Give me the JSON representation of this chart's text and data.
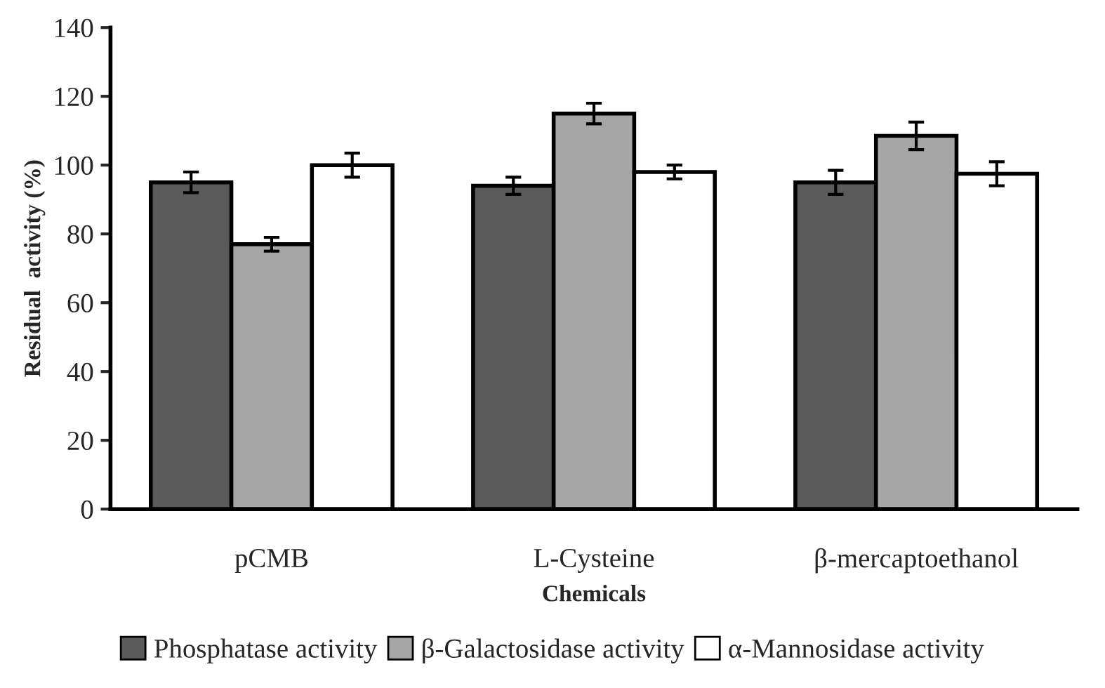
{
  "chart_data": {
    "type": "bar",
    "categories": [
      "pCMB",
      "L-Cysteine",
      "β-mercaptoethanol"
    ],
    "series": [
      {
        "name": "Phosphatase activity",
        "color": "#5a5a5a",
        "values": [
          95,
          94,
          95
        ],
        "errors": [
          3,
          2.5,
          3.5
        ]
      },
      {
        "name": "β-Galactosidase activity",
        "color": "#a6a6a6",
        "values": [
          77,
          115,
          108.5
        ],
        "errors": [
          2,
          3,
          4
        ]
      },
      {
        "name": "α-Mannosidase activity",
        "color": "#ffffff",
        "values": [
          100,
          98,
          97.5
        ],
        "errors": [
          3.5,
          2,
          3.5
        ]
      }
    ],
    "xlabel": "Chemicals",
    "ylabel": "Residual  activity (%)",
    "ylim": [
      0,
      140
    ],
    "yticks": [
      0,
      20,
      40,
      60,
      80,
      100,
      120,
      140
    ],
    "grid": false,
    "legend": "bottom"
  }
}
